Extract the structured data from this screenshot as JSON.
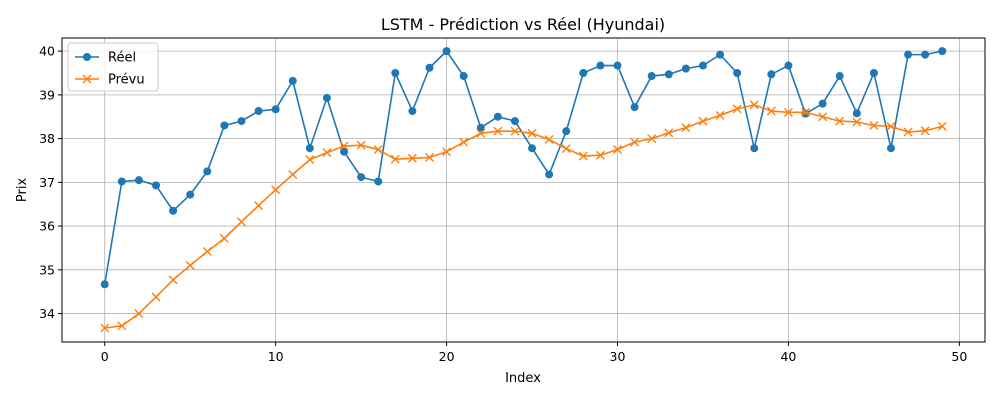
{
  "chart_data": {
    "type": "line",
    "title": "LSTM - Prédiction vs Réel (Hyundai)",
    "xlabel": "Index",
    "ylabel": "Prix",
    "xlim": [
      -2.5,
      51.5
    ],
    "ylim": [
      33.35,
      40.3
    ],
    "xticks": [
      0,
      10,
      20,
      30,
      40,
      50
    ],
    "yticks": [
      34,
      35,
      36,
      37,
      38,
      39,
      40
    ],
    "grid": true,
    "legend_position": "top-left",
    "x": [
      0,
      1,
      2,
      3,
      4,
      5,
      6,
      7,
      8,
      9,
      10,
      11,
      12,
      13,
      14,
      15,
      16,
      17,
      18,
      19,
      20,
      21,
      22,
      23,
      24,
      25,
      26,
      27,
      28,
      29,
      30,
      31,
      32,
      33,
      34,
      35,
      36,
      37,
      38,
      39,
      40,
      41,
      42,
      43,
      44,
      45,
      46,
      47,
      48,
      49
    ],
    "series": [
      {
        "name": "Réel",
        "color": "#1f77b4",
        "marker": "circle",
        "values": [
          34.67,
          37.02,
          37.05,
          36.93,
          36.35,
          36.72,
          37.25,
          38.3,
          38.4,
          38.63,
          38.67,
          39.32,
          37.78,
          38.93,
          37.7,
          37.12,
          37.02,
          39.5,
          38.63,
          39.62,
          40.0,
          39.43,
          38.25,
          38.5,
          38.4,
          37.78,
          37.18,
          38.17,
          39.5,
          39.67,
          39.67,
          38.72,
          39.43,
          39.47,
          39.6,
          39.67,
          39.92,
          39.5,
          37.78,
          39.47,
          39.67,
          38.57,
          38.8,
          39.43,
          38.58,
          39.5,
          37.78,
          39.92,
          39.92,
          40.0
        ]
      },
      {
        "name": "Prévu",
        "color": "#ff7f0e",
        "marker": "x",
        "values": [
          33.67,
          33.72,
          34.0,
          34.38,
          34.77,
          35.1,
          35.42,
          35.72,
          36.1,
          36.47,
          36.83,
          37.18,
          37.52,
          37.68,
          37.83,
          37.85,
          37.75,
          37.53,
          37.55,
          37.57,
          37.7,
          37.92,
          38.12,
          38.17,
          38.17,
          38.12,
          37.98,
          37.77,
          37.6,
          37.62,
          37.75,
          37.92,
          38.0,
          38.13,
          38.25,
          38.4,
          38.53,
          38.68,
          38.77,
          38.63,
          38.6,
          38.6,
          38.5,
          38.4,
          38.38,
          38.3,
          38.28,
          38.15,
          38.18,
          38.28
        ]
      }
    ]
  }
}
